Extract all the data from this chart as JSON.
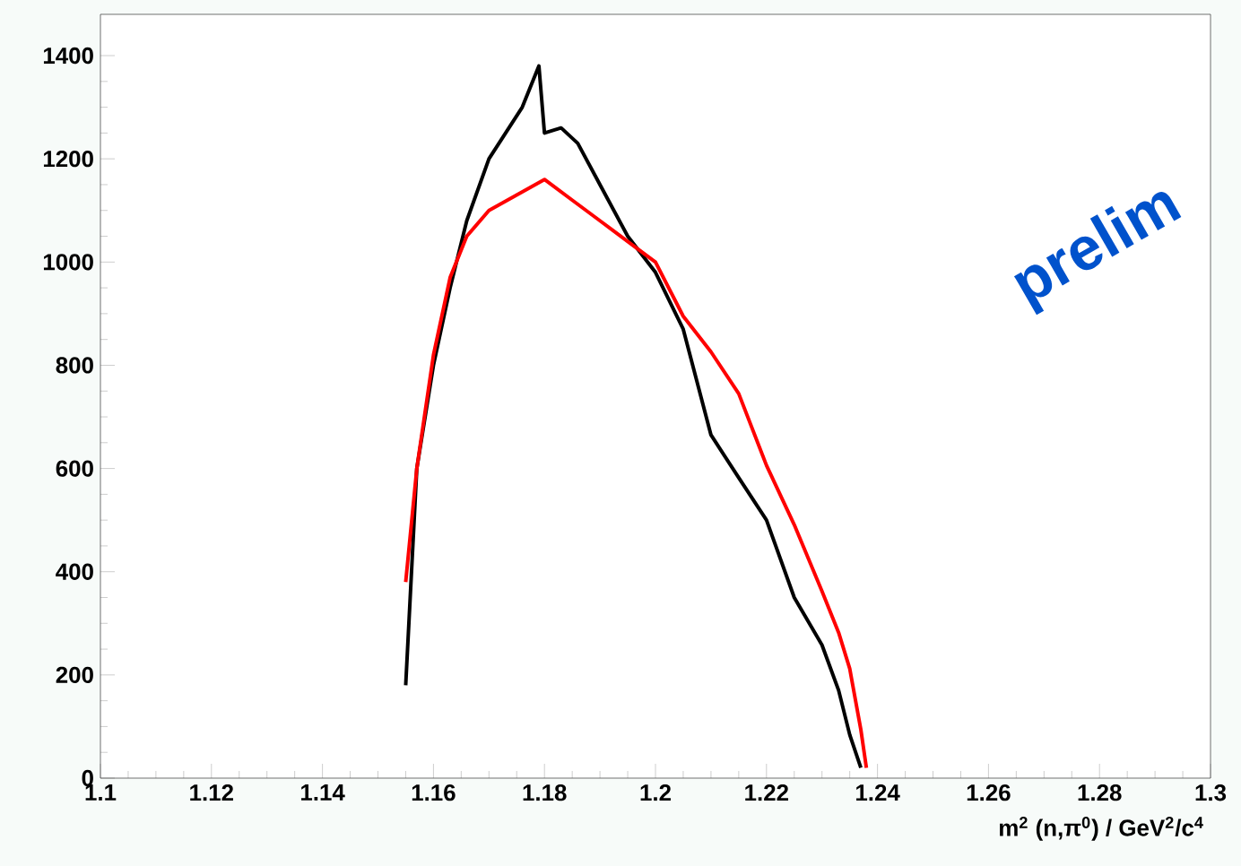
{
  "chart_data": {
    "type": "line",
    "xlabel": "m$^{2}$ (n,π$^{0}$) / GeV$^{2}$/c$^{4}$",
    "xlim": [
      1.1,
      1.3
    ],
    "ylim": [
      0,
      1480
    ],
    "xticks": [
      1.1,
      1.12,
      1.14,
      1.16,
      1.18,
      1.2,
      1.22,
      1.24,
      1.26,
      1.28,
      1.3
    ],
    "yticks": [
      0,
      200,
      400,
      600,
      800,
      1000,
      1200,
      1400
    ],
    "marker": "none",
    "line_style": "solid",
    "annotations": [
      "prelim"
    ],
    "series": [
      {
        "color": "#000000",
        "x": [
          1.155,
          1.157,
          1.16,
          1.163,
          1.166,
          1.17,
          1.173,
          1.176,
          1.179,
          1.18,
          1.183,
          1.186,
          1.19,
          1.195,
          1.2,
          1.205,
          1.21,
          1.215,
          1.22,
          1.225,
          1.23,
          1.233,
          1.235,
          1.237
        ],
        "values": [
          180,
          600,
          800,
          950,
          1080,
          1200,
          1250,
          1300,
          1380,
          1250,
          1260,
          1230,
          1150,
          1050,
          980,
          870,
          665,
          582,
          500,
          350,
          258,
          170,
          84,
          20
        ]
      },
      {
        "color": "#ff0000",
        "x": [
          1.155,
          1.157,
          1.16,
          1.163,
          1.166,
          1.17,
          1.175,
          1.18,
          1.185,
          1.19,
          1.195,
          1.2,
          1.205,
          1.21,
          1.215,
          1.22,
          1.225,
          1.23,
          1.233,
          1.235,
          1.237,
          1.238
        ],
        "values": [
          380,
          600,
          820,
          970,
          1050,
          1100,
          1130,
          1160,
          1120,
          1080,
          1040,
          1000,
          895,
          826,
          745,
          606,
          491,
          362,
          282,
          212,
          94,
          20
        ]
      }
    ]
  }
}
